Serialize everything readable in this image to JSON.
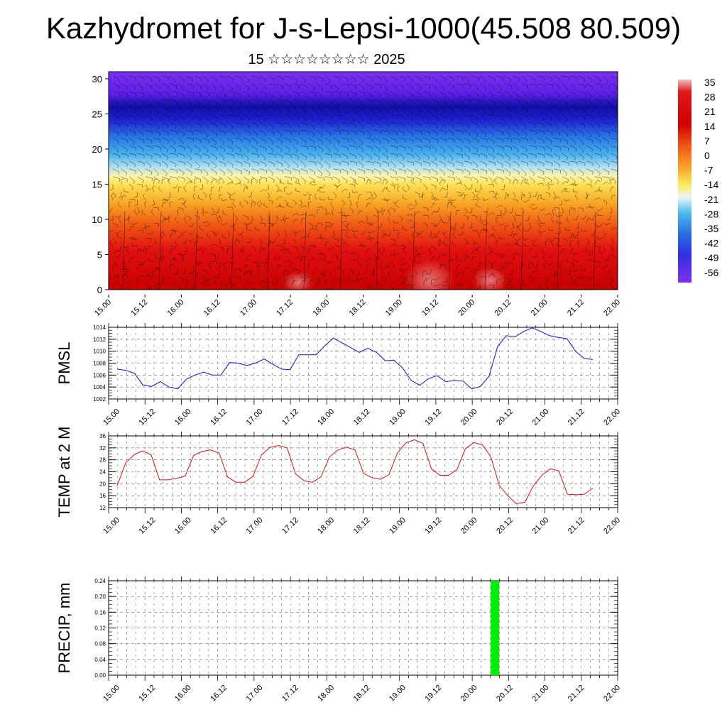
{
  "title": "Kazhydromet for J-s-Lepsi-1000(45.508 80.509)",
  "subtitle": "15 ☆☆☆☆☆☆☆☆ 2025",
  "x_tick_labels": [
    "15.00",
    "15.12",
    "16.00",
    "16.12",
    "17.00",
    "17.12",
    "18.00",
    "18.12",
    "19.00",
    "19.12",
    "20.00",
    "20.12",
    "21.00",
    "21.12",
    "22.00"
  ],
  "colors": {
    "pmsl_line": "#1010e0",
    "temp_line": "#e01010",
    "precip_bar": "#00ee00"
  },
  "chart_data": [
    {
      "name_hint": "cross-section",
      "type": "heatmap",
      "y": {
        "ticks": [
          "0",
          "5",
          "10",
          "15",
          "20",
          "25",
          "30"
        ],
        "range": [
          0,
          31
        ]
      },
      "colorbar": {
        "labels": [
          "35",
          "28",
          "21",
          "14",
          "7",
          "0",
          "-7",
          "-14",
          "-21",
          "-28",
          "-35",
          "-42",
          "-49",
          "-56"
        ],
        "range": [
          -60,
          38
        ]
      },
      "overlay": "wind barbs"
    },
    {
      "type": "line",
      "ylabel": "PMSL",
      "ylim": [
        1002,
        1014
      ],
      "y_ticks": [
        "1002",
        "1004",
        "1006",
        "1008",
        "1010",
        "1012",
        "1014"
      ],
      "values": [
        1007.0,
        1006.8,
        1006.3,
        1004.3,
        1004.1,
        1004.9,
        1004.0,
        1003.7,
        1005.3,
        1006.0,
        1006.5,
        1006.0,
        1006.0,
        1008.1,
        1008.0,
        1007.6,
        1008.0,
        1008.7,
        1007.8,
        1007.0,
        1006.9,
        1009.4,
        1009.4,
        1009.4,
        1010.9,
        1012.2,
        1011.4,
        1010.6,
        1009.8,
        1010.5,
        1009.8,
        1008.4,
        1008.5,
        1007.2,
        1005.1,
        1004.3,
        1005.4,
        1005.9,
        1004.9,
        1005.1,
        1005.0,
        1003.7,
        1004.1,
        1005.8,
        1010.8,
        1012.6,
        1012.4,
        1013.3,
        1013.9,
        1013.3,
        1012.6,
        1012.3,
        1012.1,
        1010.0,
        1008.8,
        1008.6
      ]
    },
    {
      "type": "line",
      "ylabel": "TEMP at 2 M",
      "ylim": [
        12,
        36
      ],
      "y_ticks": [
        "12",
        "16",
        "20",
        "24",
        "28",
        "32",
        "36"
      ],
      "values": [
        19.3,
        27.0,
        29.7,
        31.0,
        29.7,
        21.3,
        21.3,
        21.8,
        22.5,
        29.5,
        30.8,
        31.3,
        30.3,
        22.3,
        20.5,
        20.5,
        22.5,
        29.7,
        32.2,
        32.8,
        32.0,
        23.3,
        21.0,
        20.5,
        22.3,
        29.0,
        31.3,
        32.3,
        31.3,
        23.5,
        22.0,
        21.5,
        23.0,
        30.3,
        33.7,
        34.7,
        33.5,
        25.0,
        22.8,
        22.8,
        24.7,
        31.7,
        33.8,
        33.0,
        29.0,
        19.3,
        16.0,
        13.3,
        13.8,
        19.3,
        22.8,
        25.0,
        24.3,
        16.5,
        16.3,
        16.5,
        18.5
      ]
    },
    {
      "type": "bar",
      "ylabel": "PRECIP, mm",
      "ylim": [
        0,
        0.24
      ],
      "y_ticks": [
        "0.00",
        "0.04",
        "0.08",
        "0.12",
        "0.16",
        "0.20",
        "0.24"
      ],
      "bars": [
        {
          "x": 42.5,
          "value": 0.24
        }
      ]
    }
  ]
}
